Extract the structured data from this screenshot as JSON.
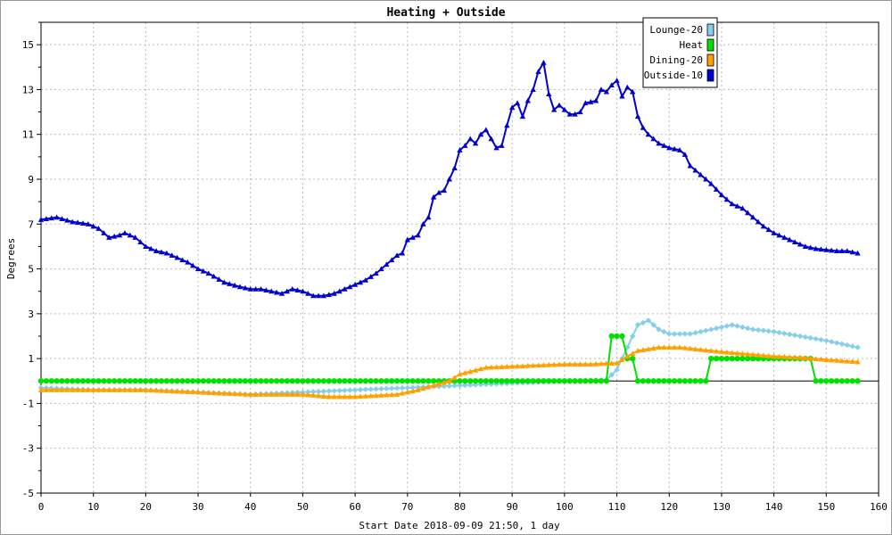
{
  "chart_data": {
    "type": "line",
    "title": "Heating + Outside",
    "xlabel": "Start Date 2018-09-09 21:50, 1 day",
    "ylabel": "Degrees",
    "xlim": [
      0,
      160
    ],
    "ylim": [
      -5,
      16
    ],
    "x_ticks": [
      0,
      10,
      20,
      30,
      40,
      50,
      60,
      70,
      80,
      90,
      100,
      110,
      120,
      130,
      140,
      150,
      160
    ],
    "y_ticks": [
      -5,
      -3,
      -1,
      1,
      3,
      5,
      7,
      9,
      11,
      13,
      15
    ],
    "grid": true,
    "legend_position": "top-right",
    "series": [
      {
        "name": "Lounge-20",
        "color": "#87ceeb",
        "marker": "diamond",
        "points": [
          [
            0,
            -0.3
          ],
          [
            10,
            -0.4
          ],
          [
            20,
            -0.4
          ],
          [
            30,
            -0.5
          ],
          [
            40,
            -0.6
          ],
          [
            50,
            -0.5
          ],
          [
            60,
            -0.4
          ],
          [
            70,
            -0.3
          ],
          [
            80,
            -0.2
          ],
          [
            90,
            -0.1
          ],
          [
            100,
            0
          ],
          [
            108,
            0.05
          ],
          [
            110,
            0.5
          ],
          [
            112,
            1.5
          ],
          [
            114,
            2.5
          ],
          [
            116,
            2.7
          ],
          [
            118,
            2.3
          ],
          [
            120,
            2.1
          ],
          [
            124,
            2.1
          ],
          [
            128,
            2.3
          ],
          [
            132,
            2.5
          ],
          [
            136,
            2.3
          ],
          [
            140,
            2.2
          ],
          [
            145,
            2
          ],
          [
            150,
            1.8
          ],
          [
            156,
            1.5
          ]
        ]
      },
      {
        "name": "Heat",
        "color": "#00e000",
        "marker": "circle",
        "points": [
          [
            0,
            0
          ],
          [
            108,
            0
          ],
          [
            109,
            2
          ],
          [
            111,
            2
          ],
          [
            112,
            1
          ],
          [
            113,
            1
          ],
          [
            114,
            0
          ],
          [
            127,
            0
          ],
          [
            128,
            1
          ],
          [
            147,
            1
          ],
          [
            148,
            0
          ],
          [
            156,
            0
          ]
        ]
      },
      {
        "name": "Dining-20",
        "color": "#ffa000",
        "marker": "triangle",
        "points": [
          [
            0,
            -0.4
          ],
          [
            10,
            -0.4
          ],
          [
            20,
            -0.4
          ],
          [
            30,
            -0.5
          ],
          [
            40,
            -0.6
          ],
          [
            50,
            -0.6
          ],
          [
            55,
            -0.7
          ],
          [
            60,
            -0.7
          ],
          [
            68,
            -0.6
          ],
          [
            72,
            -0.4
          ],
          [
            75,
            -0.2
          ],
          [
            78,
            0
          ],
          [
            80,
            0.3
          ],
          [
            85,
            0.6
          ],
          [
            90,
            0.65
          ],
          [
            95,
            0.7
          ],
          [
            100,
            0.75
          ],
          [
            105,
            0.75
          ],
          [
            110,
            0.8
          ],
          [
            112,
            1.1
          ],
          [
            114,
            1.35
          ],
          [
            118,
            1.5
          ],
          [
            122,
            1.5
          ],
          [
            126,
            1.4
          ],
          [
            130,
            1.3
          ],
          [
            135,
            1.2
          ],
          [
            140,
            1.1
          ],
          [
            145,
            1.05
          ],
          [
            150,
            0.95
          ],
          [
            156,
            0.85
          ]
        ]
      },
      {
        "name": "Outside-10",
        "color": "#0000d0",
        "marker": "triangle",
        "points": [
          [
            0,
            7.2
          ],
          [
            3,
            7.3
          ],
          [
            6,
            7.1
          ],
          [
            9,
            7
          ],
          [
            11,
            6.8
          ],
          [
            13,
            6.4
          ],
          [
            15,
            6.5
          ],
          [
            16,
            6.6
          ],
          [
            18,
            6.4
          ],
          [
            20,
            6
          ],
          [
            22,
            5.8
          ],
          [
            24,
            5.7
          ],
          [
            26,
            5.5
          ],
          [
            28,
            5.3
          ],
          [
            30,
            5
          ],
          [
            32,
            4.8
          ],
          [
            35,
            4.4
          ],
          [
            38,
            4.2
          ],
          [
            40,
            4.1
          ],
          [
            42,
            4.1
          ],
          [
            44,
            4
          ],
          [
            46,
            3.9
          ],
          [
            48,
            4.1
          ],
          [
            50,
            4
          ],
          [
            52,
            3.8
          ],
          [
            54,
            3.8
          ],
          [
            56,
            3.9
          ],
          [
            58,
            4.1
          ],
          [
            60,
            4.3
          ],
          [
            62,
            4.5
          ],
          [
            64,
            4.8
          ],
          [
            66,
            5.2
          ],
          [
            68,
            5.6
          ],
          [
            69,
            5.7
          ],
          [
            70,
            6.3
          ],
          [
            72,
            6.5
          ],
          [
            73,
            7
          ],
          [
            74,
            7.3
          ],
          [
            75,
            8.2
          ],
          [
            76,
            8.4
          ],
          [
            77,
            8.5
          ],
          [
            78,
            9
          ],
          [
            79,
            9.5
          ],
          [
            80,
            10.3
          ],
          [
            81,
            10.5
          ],
          [
            82,
            10.8
          ],
          [
            83,
            10.6
          ],
          [
            84,
            11
          ],
          [
            85,
            11.2
          ],
          [
            86,
            10.8
          ],
          [
            87,
            10.4
          ],
          [
            88,
            10.5
          ],
          [
            89,
            11.4
          ],
          [
            90,
            12.2
          ],
          [
            91,
            12.4
          ],
          [
            92,
            11.8
          ],
          [
            93,
            12.5
          ],
          [
            94,
            13
          ],
          [
            95,
            13.8
          ],
          [
            96,
            14.2
          ],
          [
            97,
            12.8
          ],
          [
            98,
            12.1
          ],
          [
            99,
            12.3
          ],
          [
            100,
            12.1
          ],
          [
            101,
            11.9
          ],
          [
            102,
            11.9
          ],
          [
            103,
            12
          ],
          [
            104,
            12.4
          ],
          [
            106,
            12.5
          ],
          [
            107,
            13
          ],
          [
            108,
            12.9
          ],
          [
            109,
            13.2
          ],
          [
            110,
            13.4
          ],
          [
            111,
            12.7
          ],
          [
            112,
            13.1
          ],
          [
            113,
            12.9
          ],
          [
            114,
            11.8
          ],
          [
            115,
            11.3
          ],
          [
            116,
            11
          ],
          [
            118,
            10.6
          ],
          [
            120,
            10.4
          ],
          [
            122,
            10.3
          ],
          [
            123,
            10.1
          ],
          [
            124,
            9.6
          ],
          [
            126,
            9.2
          ],
          [
            128,
            8.8
          ],
          [
            130,
            8.3
          ],
          [
            132,
            7.9
          ],
          [
            134,
            7.7
          ],
          [
            136,
            7.3
          ],
          [
            138,
            6.9
          ],
          [
            140,
            6.6
          ],
          [
            142,
            6.4
          ],
          [
            144,
            6.2
          ],
          [
            146,
            6
          ],
          [
            148,
            5.9
          ],
          [
            150,
            5.85
          ],
          [
            152,
            5.8
          ],
          [
            154,
            5.8
          ],
          [
            156,
            5.7
          ]
        ]
      }
    ]
  }
}
